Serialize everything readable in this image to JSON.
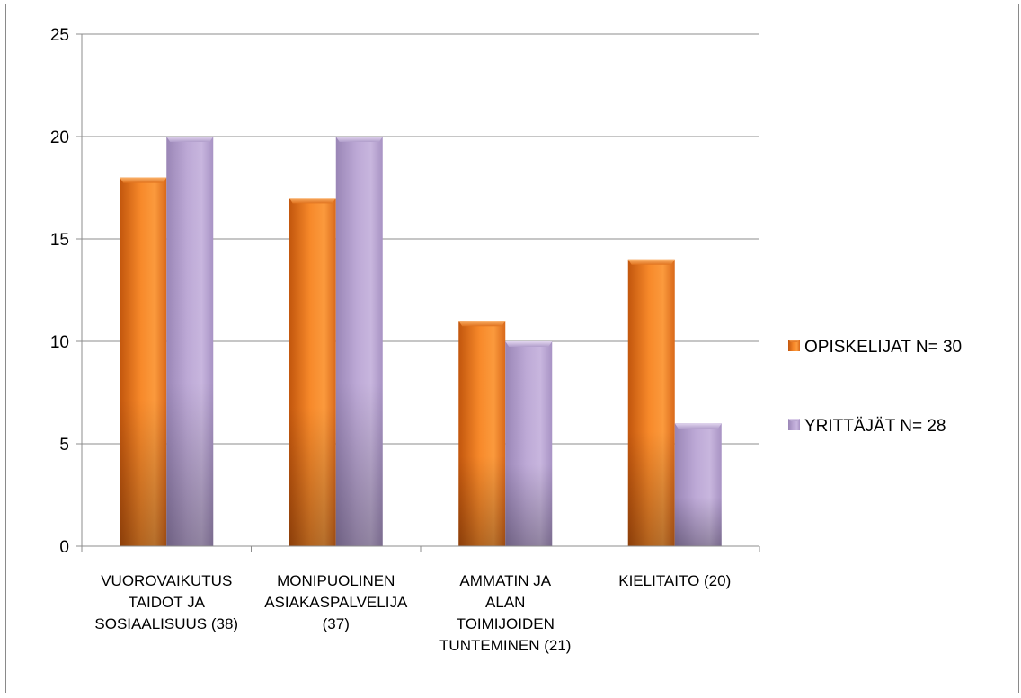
{
  "chart_data": {
    "type": "bar",
    "title": "",
    "xlabel": "",
    "ylabel": "",
    "ylim": [
      0,
      25
    ],
    "yticks": [
      0,
      5,
      10,
      15,
      20,
      25
    ],
    "grid": true,
    "legend_position": "right",
    "categories": [
      [
        "VUOROVAIKUTUS",
        "TAIDOT JA",
        "SOSIAALISUUS (38)"
      ],
      [
        "MONIPUOLINEN",
        "ASIAKASPALVELIJA",
        "(37)"
      ],
      [
        "AMMATIN JA",
        "ALAN",
        "TOIMIJOIDEN",
        "TUNTEMINEN (21)"
      ],
      [
        "KIELITAITO (20)"
      ]
    ],
    "series": [
      {
        "name": "OPISKELIJAT N= 30",
        "color": "#f58a2a",
        "values": [
          18,
          17,
          11,
          14
        ]
      },
      {
        "name": "YRITTÄJÄT N= 28",
        "color": "#b7a4cf",
        "values": [
          20,
          20,
          10,
          6
        ]
      }
    ]
  }
}
